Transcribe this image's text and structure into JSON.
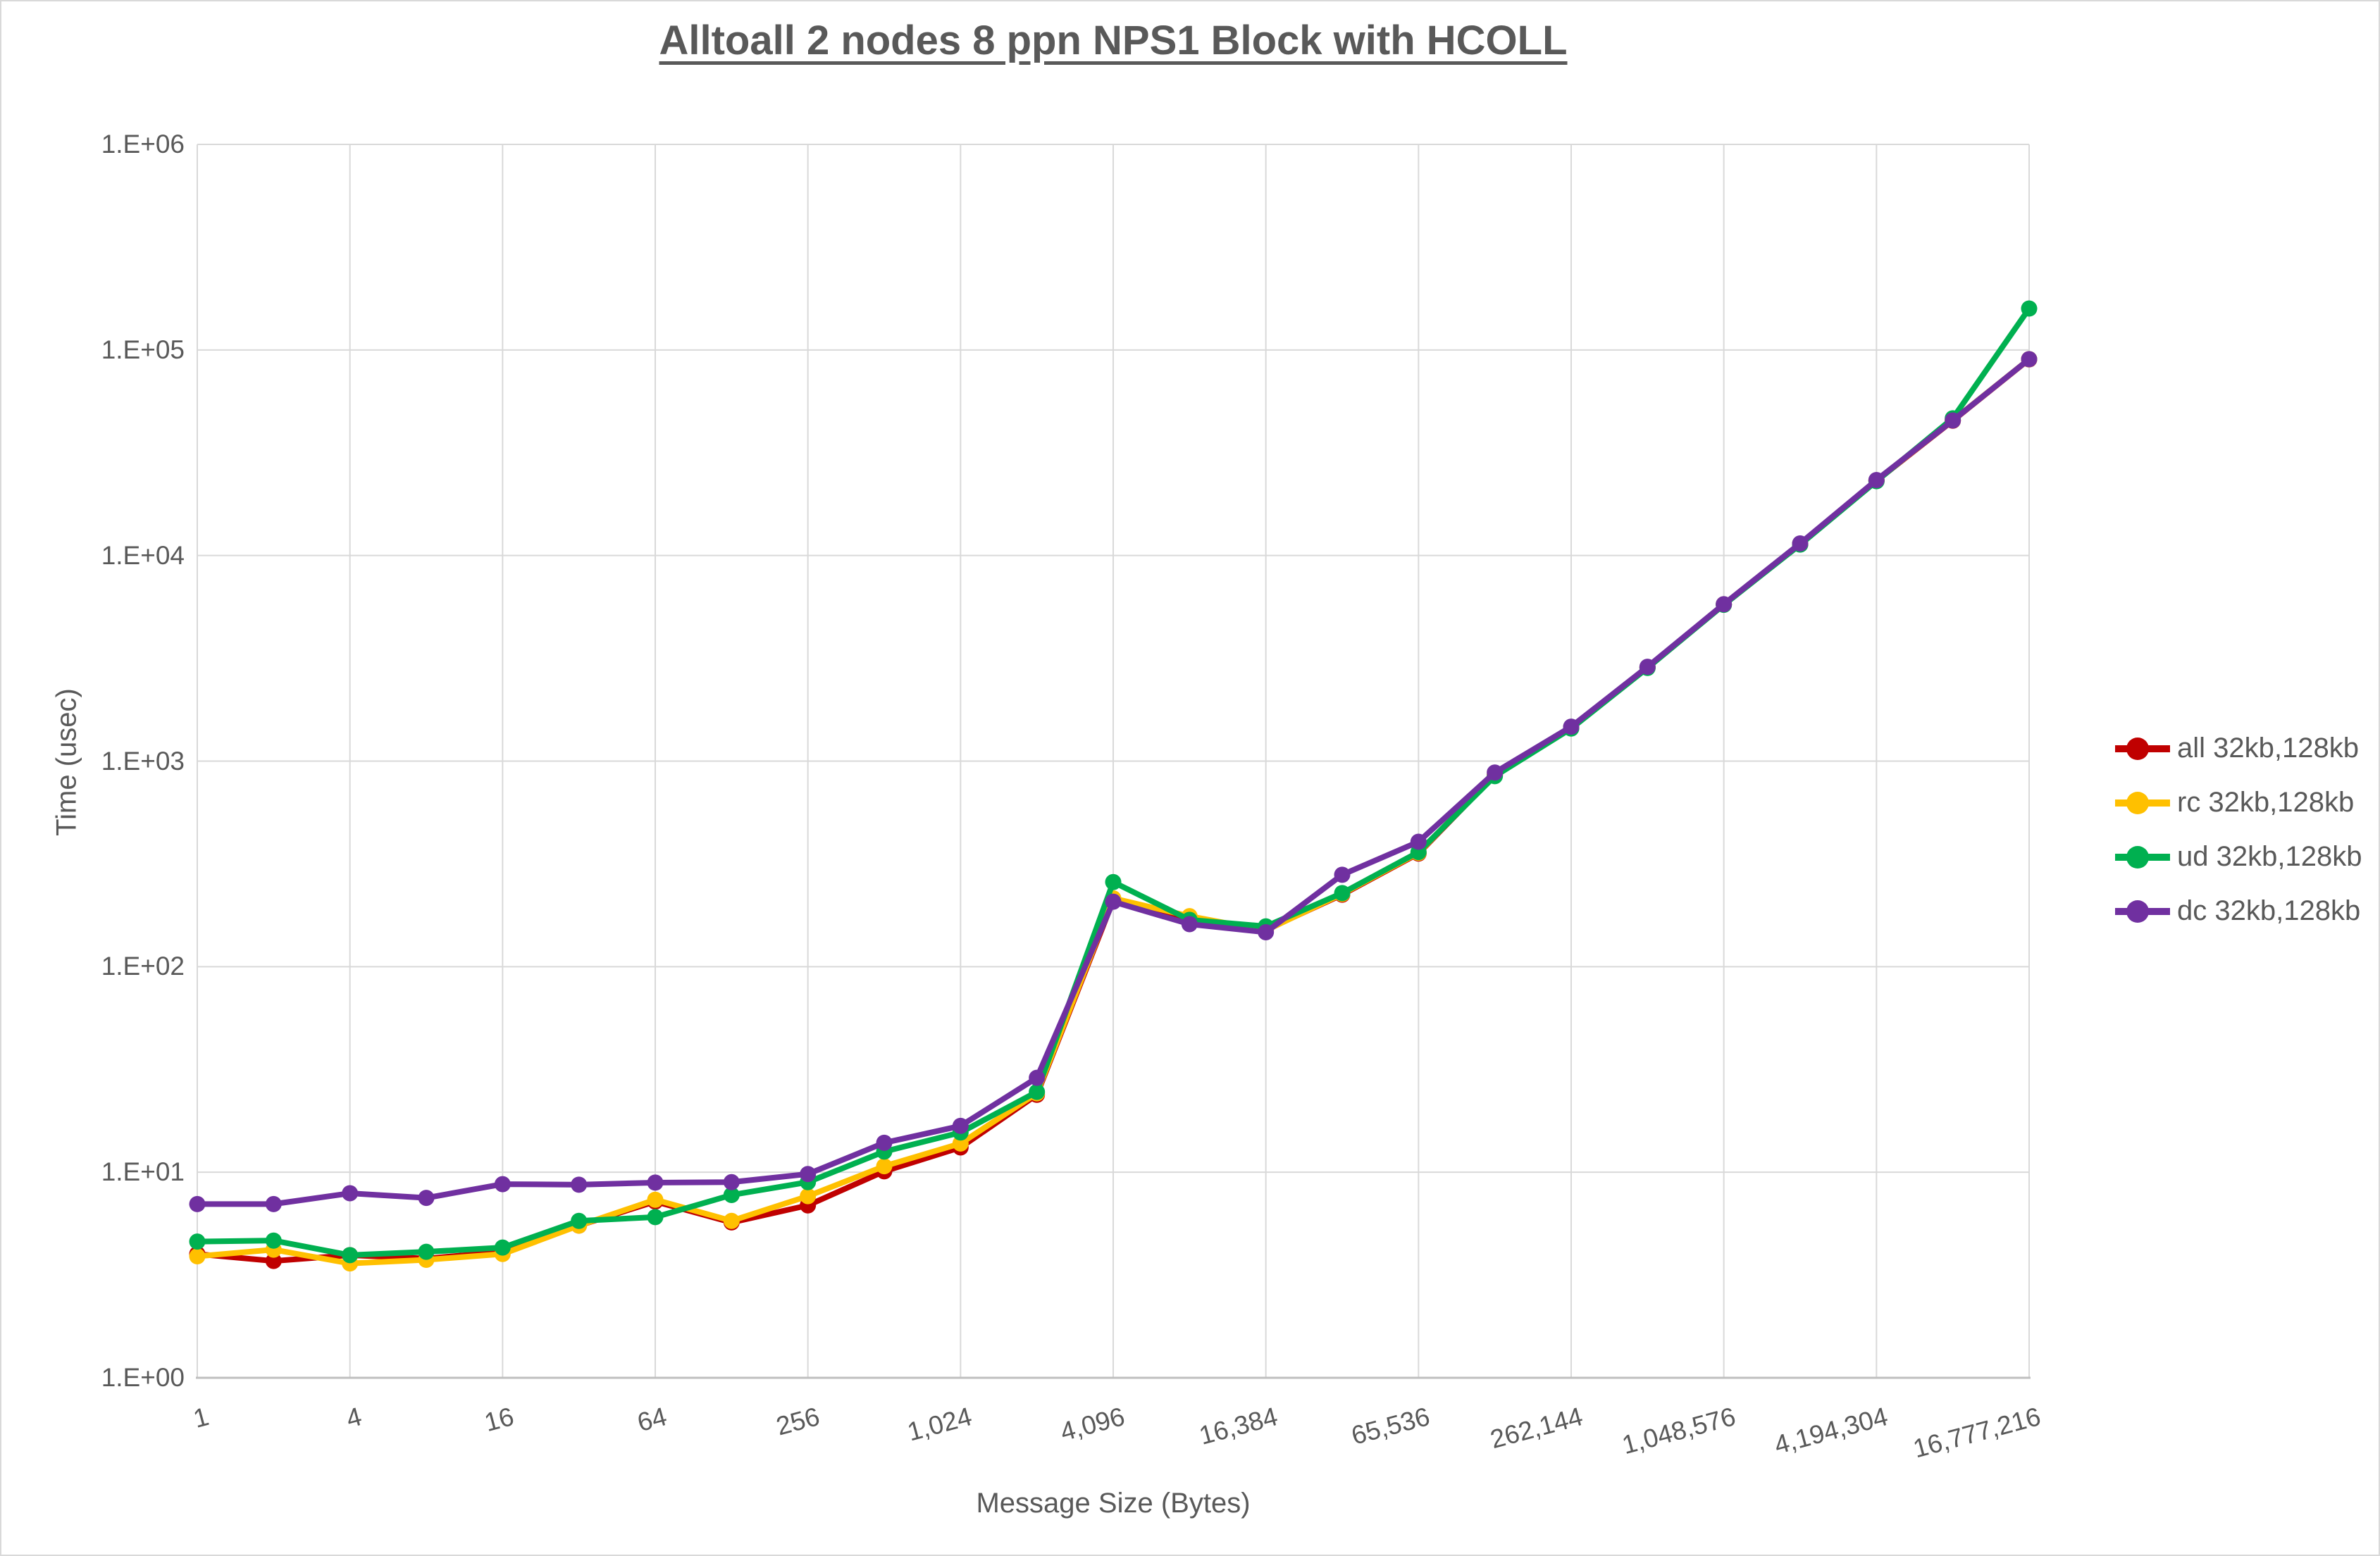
{
  "chart_data": {
    "type": "line",
    "title": "Alltoall 2 nodes 8 ppn NPS1 Block with HCOLL",
    "xlabel": "Message Size (Bytes)",
    "ylabel": "Time (usec)",
    "x_scale": "log2-categories",
    "y_scale": "log10",
    "ylim": [
      1,
      1000000
    ],
    "grid": true,
    "legend_position": "right",
    "y_tick_labels": [
      "1.E+00",
      "1.E+01",
      "1.E+02",
      "1.E+03",
      "1.E+04",
      "1.E+05",
      "1.E+06"
    ],
    "x_tick_labels": [
      "1",
      "4",
      "16",
      "64",
      "256",
      "1,024",
      "4,096",
      "16,384",
      "65,536",
      "262,144",
      "1,048,576",
      "4,194,304",
      "16,777,216"
    ],
    "x": [
      1,
      2,
      4,
      8,
      16,
      32,
      64,
      128,
      256,
      512,
      1024,
      2048,
      4096,
      8192,
      16384,
      32768,
      65536,
      131072,
      262144,
      524288,
      1048576,
      2097152,
      4194304,
      8388608,
      16777216
    ],
    "series": [
      {
        "name": "all 32kb,128kb",
        "color": "#C00000",
        "values": [
          4.0,
          3.7,
          3.95,
          3.8,
          4.1,
          5.5,
          7.2,
          5.7,
          6.9,
          10.1,
          13.2,
          23.8,
          210,
          172,
          151,
          224,
          355,
          855,
          1450,
          2850,
          5770,
          11350,
          23100,
          45300,
          90000
        ]
      },
      {
        "name": "rc 32kb,128kb",
        "color": "#FFC000",
        "values": [
          3.9,
          4.2,
          3.6,
          3.75,
          4.0,
          5.5,
          7.35,
          5.8,
          7.65,
          10.7,
          13.8,
          24.2,
          215,
          176,
          150,
          226,
          358,
          860,
          1460,
          2860,
          5790,
          11400,
          23200,
          45500,
          90200
        ]
      },
      {
        "name": "ud 32kb,128kb",
        "color": "#00B050",
        "values": [
          4.6,
          4.65,
          3.95,
          4.1,
          4.3,
          5.8,
          6.05,
          7.75,
          8.95,
          12.6,
          15.6,
          24.6,
          258,
          169,
          157,
          228,
          361,
          845,
          1440,
          2840,
          5760,
          11300,
          23000,
          46500,
          159000
        ]
      },
      {
        "name": "dc 32kb,128kb",
        "color": "#7030A0",
        "values": [
          7.0,
          7.0,
          7.9,
          7.5,
          8.75,
          8.7,
          8.9,
          8.95,
          9.8,
          13.9,
          16.8,
          28.8,
          207,
          161,
          147,
          280,
          405,
          880,
          1470,
          2875,
          5800,
          11450,
          23300,
          45400,
          90200
        ]
      }
    ]
  },
  "styles": {
    "text_color": "#595959",
    "gridline_color": "#D9D9D9",
    "axis_line_color": "#BFBFBF",
    "background": "#FFFFFF"
  }
}
